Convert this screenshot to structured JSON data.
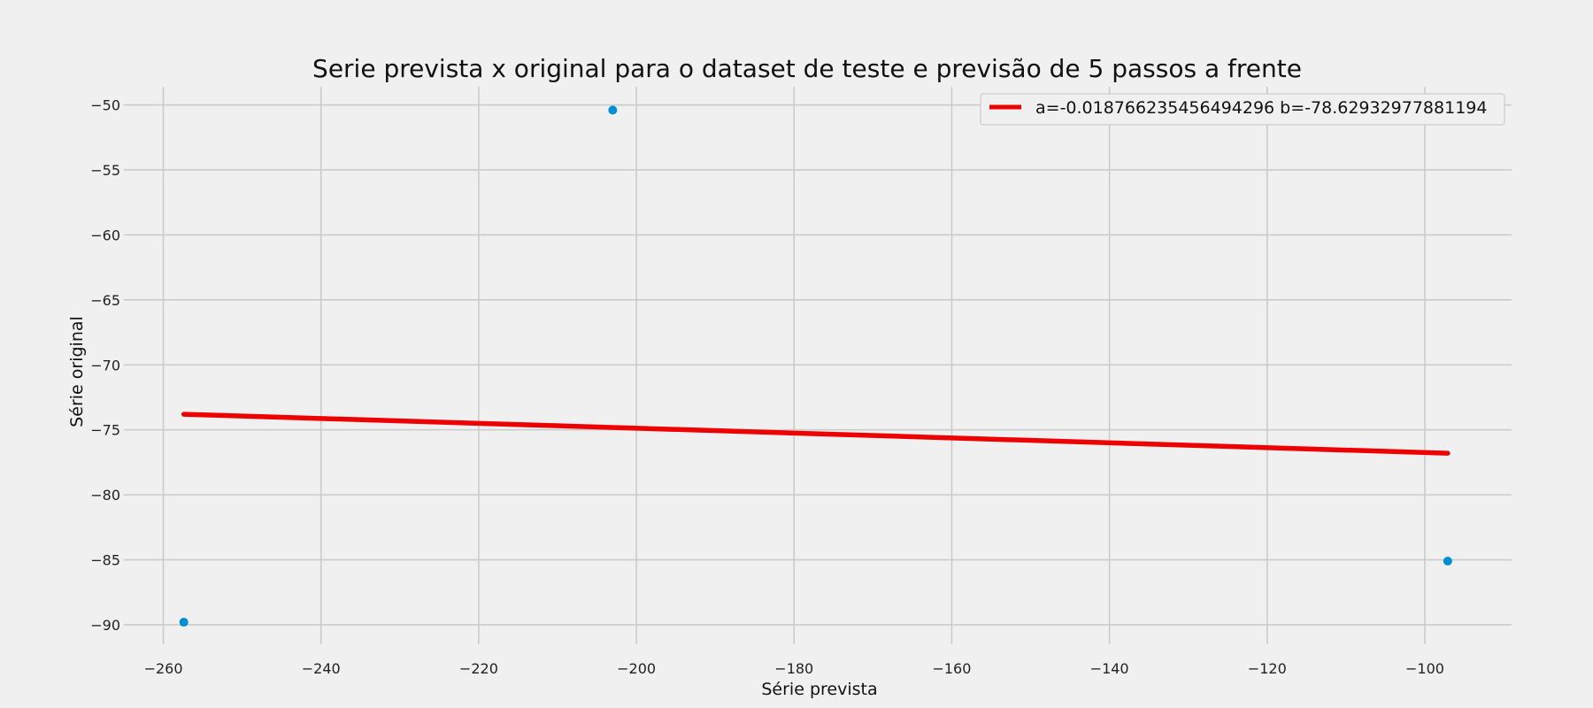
{
  "chart_data": {
    "type": "scatter",
    "title": "Serie prevista x original para o dataset de teste e previsão de 5 passos a frente",
    "xlabel": "Série prevista",
    "ylabel": "Série original",
    "xlim": [
      -265,
      -89
    ],
    "ylim": [
      -91.5,
      -48.6
    ],
    "xticks": [
      -260,
      -240,
      -220,
      -200,
      -180,
      -160,
      -140,
      -120,
      -100
    ],
    "yticks": [
      -50,
      -55,
      -60,
      -65,
      -70,
      -75,
      -80,
      -85,
      -90
    ],
    "xtick_labels": [
      "−260",
      "−240",
      "−220",
      "−200",
      "−180",
      "−160",
      "−140",
      "−120",
      "−100"
    ],
    "ytick_labels": [
      "−50",
      "−55",
      "−60",
      "−65",
      "−70",
      "−75",
      "−80",
      "−85",
      "−90"
    ],
    "grid": true,
    "legend_position": "top-right",
    "scatter_points": [
      {
        "x": -257.4,
        "y": -89.8
      },
      {
        "x": -203.0,
        "y": -50.4
      },
      {
        "x": -97.1,
        "y": -85.1
      }
    ],
    "series": [
      {
        "name": "a=-0.018766235456494296 b=-78.62932977881194",
        "type": "line",
        "x": [
          -257.4,
          -97.1
        ],
        "y": [
          -73.8,
          -76.8
        ],
        "color": "#ee0000"
      }
    ],
    "scatter_color": "#008fd5"
  }
}
